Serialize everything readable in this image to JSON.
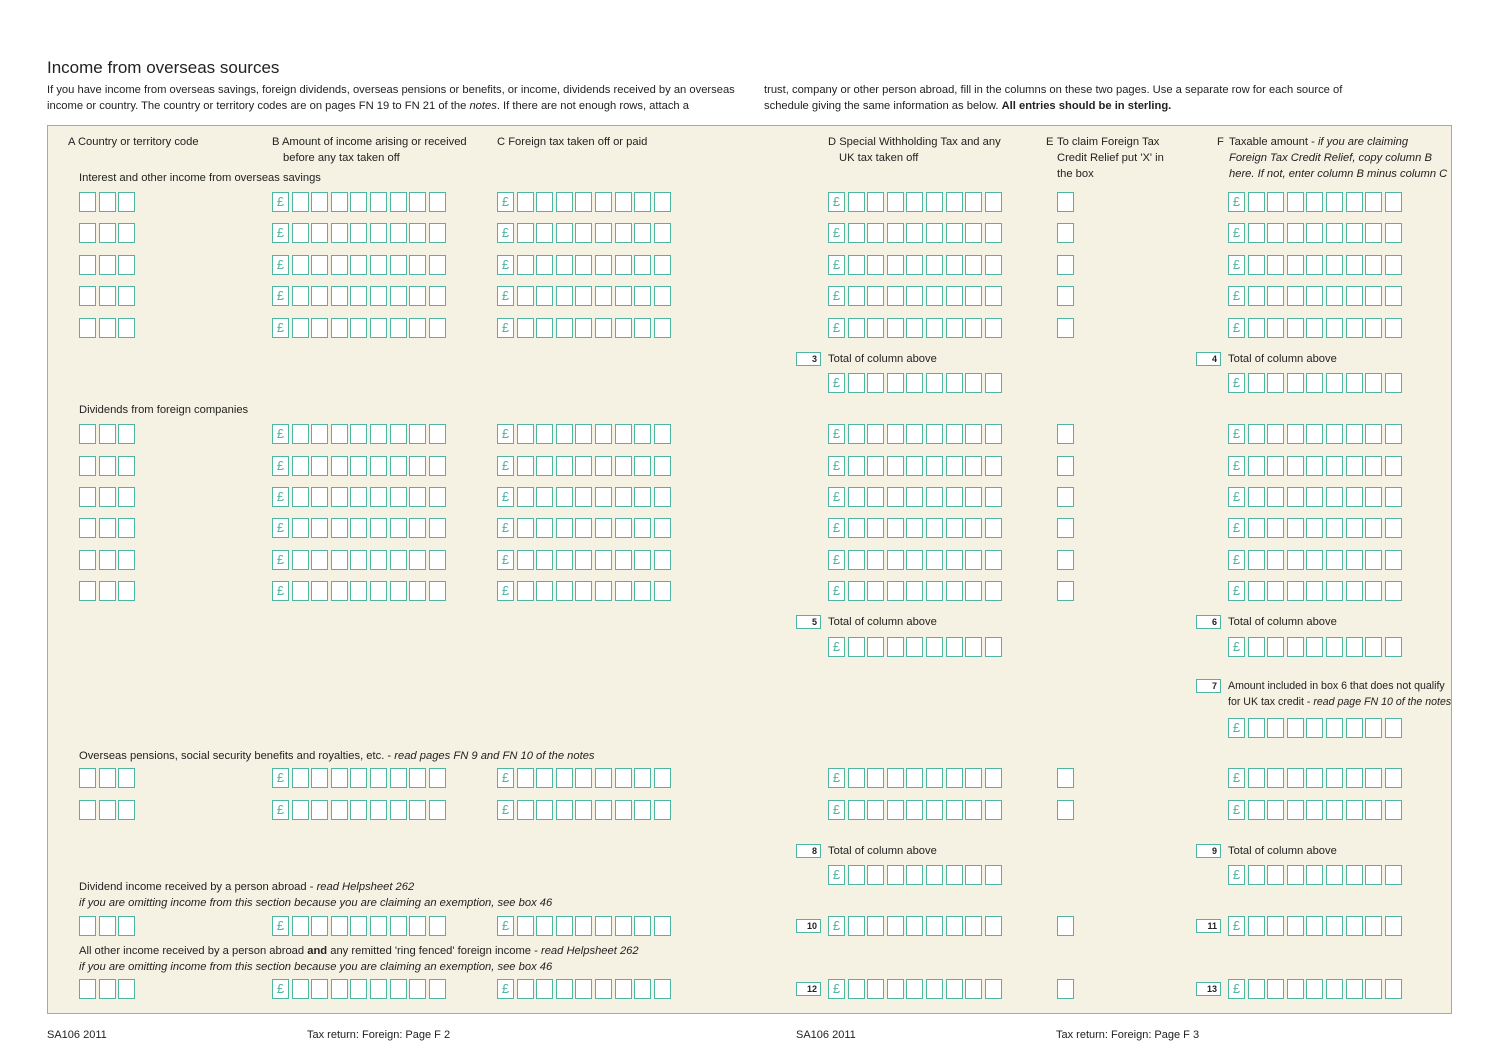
{
  "title": "Income from overseas sources",
  "intro_left": {
    "line1": "If you have income from overseas savings, foreign dividends, overseas pensions or benefits, or income, dividends received by an overseas",
    "line2_pre": "income or country. The country or territory codes are on pages FN 19 to FN 21 of the ",
    "line2_italic": "notes",
    "line2_post": ". If there are not enough rows, attach a"
  },
  "intro_right": {
    "line1": "trust, company or other person abroad, fill in the columns on these two pages.  Use a separate row for each source of",
    "line2_pre": "schedule giving the same information as below. ",
    "line2_bold": "All entries should be in sterling."
  },
  "columns": {
    "a": "A Country or territory code",
    "b1": "B Amount of income arising or received",
    "b2": "before any tax taken off",
    "c": "C Foreign tax taken off or paid",
    "d1": "D Special Withholding Tax and any",
    "d2": "UK tax taken off",
    "e_letter": "E",
    "e1": "To claim Foreign Tax",
    "e2": "Credit Relief put 'X' in",
    "e3": "the box",
    "f_letter": "F",
    "f1_pre": "Taxable amount - ",
    "f1_italic": "if you are claiming",
    "f2": "Foreign Tax Credit Relief, copy column B",
    "f3": "here. If not, enter column B minus column C"
  },
  "sections": {
    "savings": "Interest and other income from overseas savings",
    "dividends": "Dividends from foreign companies",
    "pensions_pre": "Overseas pensions, social security benefits and royalties, etc. - ",
    "pensions_italic": "read pages FN 9 and FN 10 of the notes",
    "person_div_pre": "Dividend income received by a person abroad - ",
    "person_div_italic": "read Helpsheet 262",
    "omitting_note": "if you are omitting income from this section because you are claiming an exemption, see box 46",
    "other_pre": "All other income received by a person abroad ",
    "other_bold": "and",
    "other_mid": " any remitted 'ring fenced' foreign income - ",
    "other_italic": "read Helpsheet 262",
    "omitting_note2": "if you are omitting income from this section because you are claiming an exemption, see box 46"
  },
  "totals": {
    "label": "Total of column above",
    "box3": "3",
    "box4": "4",
    "box5": "5",
    "box6": "6",
    "box8": "8",
    "box9": "9",
    "box10": "10",
    "box11": "11",
    "box12": "12",
    "box13": "13"
  },
  "box7": {
    "number": "7",
    "line1": "Amount included in box 6 that does not qualify",
    "line2_pre": "for UK tax credit - ",
    "line2_italic": "read page FN 10 of the notes"
  },
  "pound_symbol": "£",
  "footer": {
    "left_code": "SA106 2011",
    "left_page": "Tax return: Foreign: Page F 2",
    "right_code": "SA106 2011",
    "right_page": "Tax return: Foreign: Page F 3"
  },
  "colors": {
    "accent": "#4fb5a3",
    "panel": "#f5f2e3"
  }
}
